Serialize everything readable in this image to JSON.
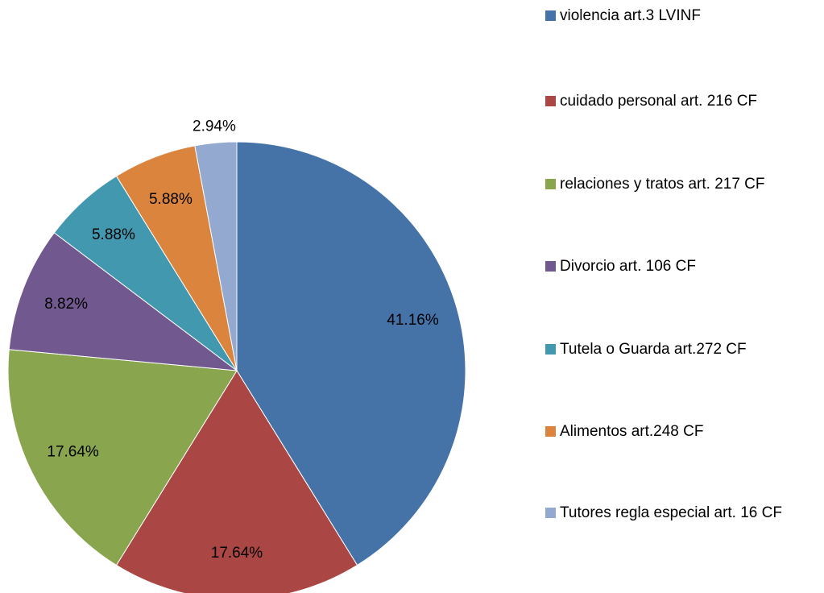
{
  "chart_data": {
    "type": "pie",
    "categories": [
      "violencia art.3 LVINF",
      "cuidado personal art. 216 CF",
      "relaciones y tratos art. 217 CF",
      "Divorcio art. 106 CF",
      "Tutela o Guarda art.272 CF",
      "Alimentos art.248 CF",
      "Tutores regla especial art. 16 CF"
    ],
    "values": [
      41.16,
      17.64,
      17.64,
      8.82,
      5.88,
      5.88,
      2.94
    ],
    "value_labels": [
      "41.16%",
      "17.64%",
      "17.64%",
      "8.82%",
      "5.88%",
      "5.88%",
      "2.94%"
    ],
    "colors": [
      "#4572a7",
      "#aa4643",
      "#89a54e",
      "#71588f",
      "#4198af",
      "#db843d",
      "#93a9cf"
    ],
    "legend": "right"
  }
}
